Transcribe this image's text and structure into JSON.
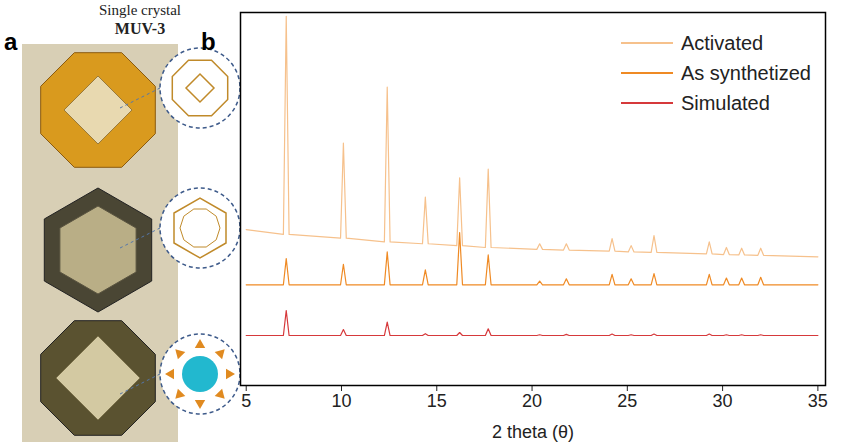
{
  "panel_a": {
    "label": "a",
    "title": "Single crystal",
    "subtitle": "MUV-3"
  },
  "chart_data": {
    "type": "line",
    "panel_label": "b",
    "x_label": "2 theta (θ)",
    "x": [
      5,
      6.95,
      7.1,
      7.25,
      9.95,
      10.1,
      10.25,
      12.25,
      12.4,
      12.55,
      14.25,
      14.4,
      14.55,
      16.05,
      16.2,
      16.35,
      17.55,
      17.7,
      17.85,
      20.25,
      20.4,
      20.55,
      21.65,
      21.8,
      21.95,
      24.05,
      24.2,
      24.35,
      25.05,
      25.2,
      25.35,
      26.25,
      26.4,
      26.55,
      29.15,
      29.3,
      29.45,
      30.05,
      30.2,
      30.35,
      30.85,
      31.0,
      31.15,
      31.85,
      32.0,
      32.15,
      35
    ],
    "series": [
      {
        "name": "Activated",
        "color": "#f6c18c",
        "values": [
          41.8,
          40.5,
          99,
          40.5,
          39.5,
          65,
          39.5,
          38.5,
          80,
          38.5,
          38,
          50.5,
          38,
          37.5,
          55.7,
          37.5,
          37,
          58,
          37,
          36.5,
          38,
          36.5,
          36.3,
          38,
          36.3,
          36,
          39.4,
          36,
          35.8,
          37.5,
          35.8,
          35.7,
          40.2,
          35.7,
          35.3,
          38.5,
          35.3,
          35.1,
          37,
          35.1,
          35,
          36.8,
          35,
          34.9,
          36.8,
          34.9,
          34.5
        ]
      },
      {
        "name": "As synthetized",
        "color": "#ef8a24",
        "values": [
          27,
          27,
          34,
          27,
          27,
          32.5,
          27,
          27,
          35.8,
          27,
          27,
          31,
          27,
          27,
          41,
          27,
          27,
          35,
          27,
          27,
          28,
          27,
          27,
          28.6,
          27,
          27,
          29.8,
          27,
          27,
          28.6,
          27,
          27,
          30,
          27,
          27,
          29.8,
          27,
          27,
          28.8,
          27,
          27,
          28.8,
          27,
          27,
          29,
          27,
          27
        ]
      },
      {
        "name": "Simulated",
        "color": "#d6393b",
        "values": [
          13.4,
          13.4,
          20.1,
          13.4,
          13.4,
          15,
          13.4,
          13.4,
          17,
          13.4,
          13.4,
          13.9,
          13.4,
          13.4,
          14.2,
          13.4,
          13.4,
          15.2,
          13.4,
          13.4,
          13.6,
          13.4,
          13.4,
          13.7,
          13.4,
          13.4,
          13.8,
          13.4,
          13.4,
          13.6,
          13.4,
          13.4,
          13.8,
          13.4,
          13.4,
          13.8,
          13.4,
          13.4,
          13.6,
          13.4,
          13.4,
          13.6,
          13.4,
          13.4,
          13.6,
          13.4,
          13.4
        ]
      }
    ],
    "xlim": [
      4.7,
      35.4
    ],
    "xticks": [
      5,
      10,
      15,
      20,
      25,
      30,
      35
    ],
    "ylim": [
      0,
      100
    ],
    "tick_labels": "x",
    "grid": false,
    "legend": "upper right"
  }
}
